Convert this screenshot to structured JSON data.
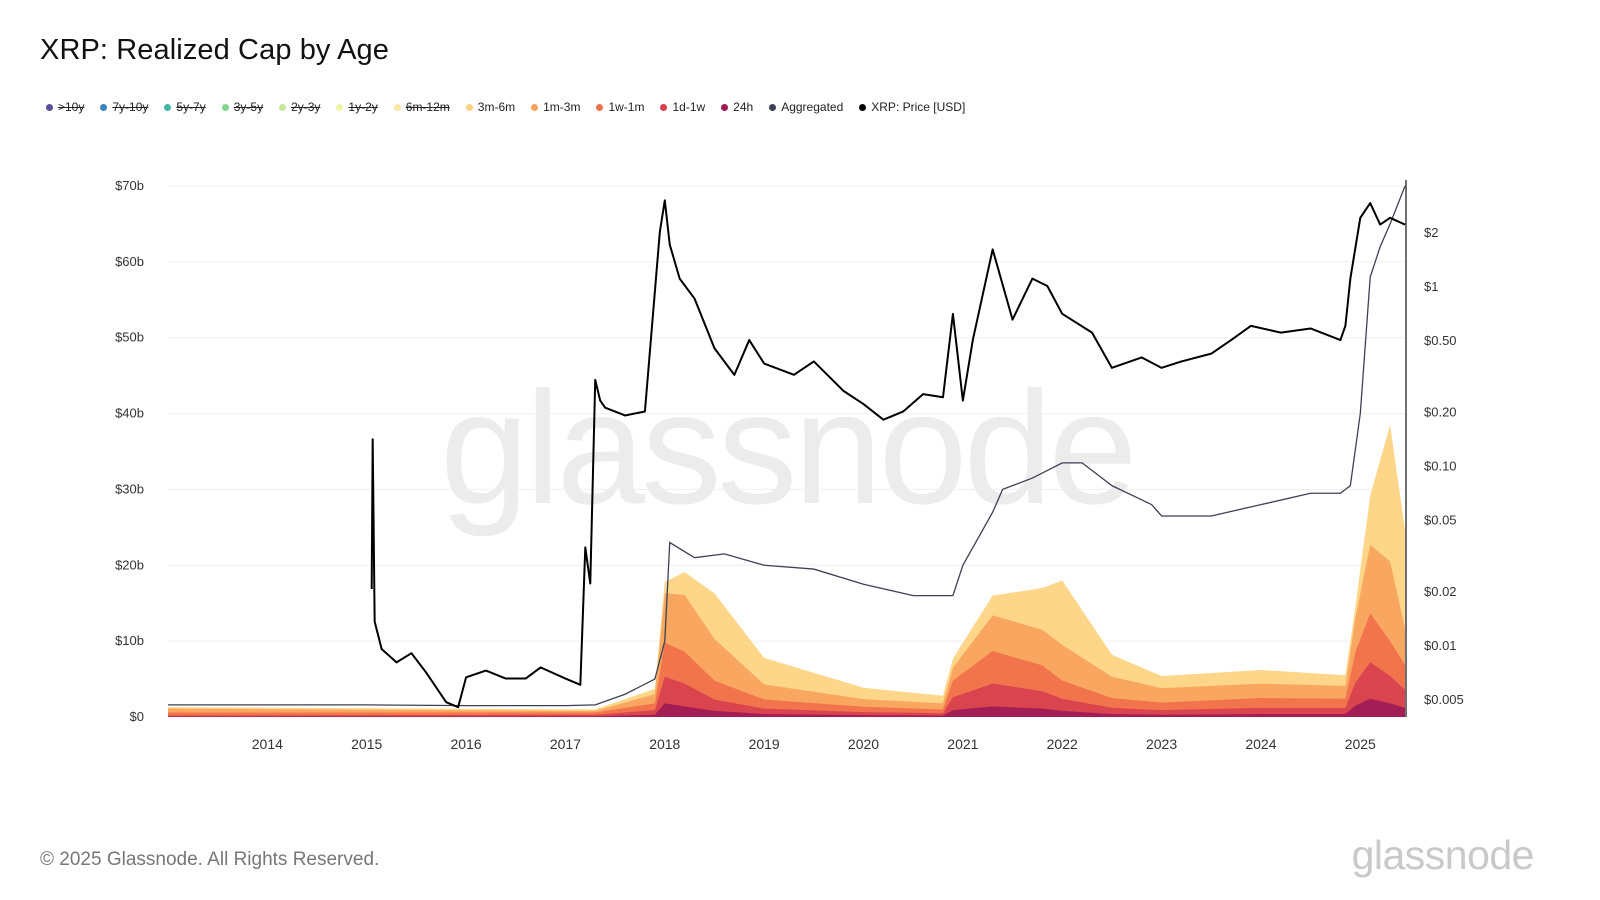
{
  "title": "XRP: Realized Cap by Age",
  "footer": "© 2025 Glassnode. All Rights Reserved.",
  "brand": "glassnode",
  "watermark": "glassnode",
  "legend": [
    {
      "label": ">10y",
      "color": "#5b4f9c",
      "active": false
    },
    {
      "label": "7y-10y",
      "color": "#3a83c1",
      "active": false
    },
    {
      "label": "5y-7y",
      "color": "#41b6a6",
      "active": false
    },
    {
      "label": "3y-5y",
      "color": "#86d58e",
      "active": false
    },
    {
      "label": "2y-3y",
      "color": "#c3e89d",
      "active": false
    },
    {
      "label": "1y-2y",
      "color": "#eef7a6",
      "active": false
    },
    {
      "label": "6m-12m",
      "color": "#fde9a4",
      "active": false
    },
    {
      "label": "3m-6m",
      "color": "#fdd27f",
      "active": true
    },
    {
      "label": "1m-3m",
      "color": "#f9a35c",
      "active": true
    },
    {
      "label": "1w-1m",
      "color": "#f0704c",
      "active": true
    },
    {
      "label": "1d-1w",
      "color": "#d8404e",
      "active": true
    },
    {
      "label": "24h",
      "color": "#9e1b55",
      "active": true
    },
    {
      "label": "Aggregated",
      "color": "#3c4254",
      "active": true
    },
    {
      "label": "XRP: Price [USD]",
      "color": "#000000",
      "active": true
    }
  ],
  "chart_data": {
    "type": "area",
    "x_axis": {
      "type": "time",
      "range": [
        2013.0,
        2025.45
      ],
      "ticks": [
        "2014",
        "2015",
        "2016",
        "2017",
        "2018",
        "2019",
        "2020",
        "2021",
        "2022",
        "2023",
        "2024",
        "2025"
      ]
    },
    "y_axis_left": {
      "range": [
        0,
        70
      ],
      "unit": "billion USD",
      "ticks": [
        "$0",
        "$10b",
        "$20b",
        "$30b",
        "$40b",
        "$50b",
        "$60b",
        "$70b"
      ]
    },
    "y_axis_right": {
      "scale": "log",
      "unit": "USD",
      "ticks": [
        {
          "label": "$0.005",
          "value": 0.005
        },
        {
          "label": "$0.01",
          "value": 0.01
        },
        {
          "label": "$0.02",
          "value": 0.02
        },
        {
          "label": "$0.05",
          "value": 0.05
        },
        {
          "label": "$0.10",
          "value": 0.1
        },
        {
          "label": "$0.20",
          "value": 0.2
        },
        {
          "label": "$0.50",
          "value": 0.5
        },
        {
          "label": "$1",
          "value": 1
        },
        {
          "label": "$2",
          "value": 2
        }
      ]
    },
    "grid": true,
    "legend_position": "top-left",
    "stacked_series": [
      {
        "name": "24h",
        "color": "#9e1b55",
        "x": [
          2013.0,
          2017.3,
          2017.9,
          2018.0,
          2018.2,
          2018.5,
          2019.0,
          2020.0,
          2020.8,
          2020.9,
          2021.3,
          2021.8,
          2022.0,
          2022.5,
          2023.0,
          2024.0,
          2024.85,
          2024.95,
          2025.1,
          2025.3,
          2025.45
        ],
        "values": [
          0.05,
          0.1,
          0.3,
          1.8,
          1.4,
          0.8,
          0.4,
          0.25,
          0.2,
          0.9,
          1.4,
          1.1,
          0.8,
          0.4,
          0.3,
          0.4,
          0.4,
          1.5,
          2.4,
          1.8,
          1.2
        ]
      },
      {
        "name": "1d-1w",
        "color": "#d8404e",
        "x": [
          2013.0,
          2017.3,
          2017.9,
          2018.0,
          2018.2,
          2018.5,
          2019.0,
          2020.0,
          2020.8,
          2020.9,
          2021.3,
          2021.8,
          2022.0,
          2022.5,
          2023.0,
          2024.0,
          2024.85,
          2024.95,
          2025.1,
          2025.3,
          2025.45
        ],
        "values": [
          0.15,
          0.2,
          0.6,
          3.5,
          3.0,
          1.5,
          0.7,
          0.4,
          0.3,
          1.7,
          3.0,
          2.3,
          1.6,
          0.8,
          0.6,
          0.8,
          0.8,
          3.0,
          4.8,
          3.6,
          2.4
        ]
      },
      {
        "name": "1w-1m",
        "color": "#f0704c",
        "x": [
          2013.0,
          2017.3,
          2017.9,
          2018.0,
          2018.2,
          2018.5,
          2019.0,
          2020.0,
          2020.8,
          2020.9,
          2021.3,
          2021.8,
          2022.0,
          2022.5,
          2023.0,
          2024.0,
          2024.85,
          2024.95,
          2025.1,
          2025.3,
          2025.45
        ],
        "values": [
          0.4,
          0.3,
          0.9,
          4.5,
          4.2,
          2.5,
          1.2,
          0.7,
          0.5,
          2.2,
          4.3,
          3.4,
          2.4,
          1.3,
          1.0,
          1.3,
          1.2,
          4.0,
          6.5,
          4.6,
          3.3
        ]
      },
      {
        "name": "1m-3m",
        "color": "#f9a35c",
        "x": [
          2013.0,
          2017.3,
          2017.9,
          2018.0,
          2018.2,
          2018.5,
          2019.0,
          2020.0,
          2020.8,
          2020.9,
          2021.3,
          2021.8,
          2022.0,
          2022.5,
          2023.0,
          2024.0,
          2024.85,
          2024.95,
          2025.1,
          2025.3,
          2025.45
        ],
        "values": [
          0.5,
          0.2,
          1.2,
          6.5,
          7.5,
          5.5,
          2.0,
          1.0,
          0.8,
          1.7,
          4.7,
          4.7,
          4.7,
          2.8,
          1.9,
          1.9,
          1.7,
          4.5,
          9.0,
          10.5,
          4.8
        ]
      },
      {
        "name": "3m-6m",
        "color": "#fdd27f",
        "x": [
          2013.0,
          2017.3,
          2017.9,
          2018.0,
          2018.2,
          2018.5,
          2019.0,
          2020.0,
          2020.8,
          2020.9,
          2021.3,
          2021.8,
          2022.0,
          2022.5,
          2023.0,
          2024.0,
          2024.85,
          2024.95,
          2025.1,
          2025.3,
          2025.45
        ],
        "values": [
          0.2,
          0.2,
          0.7,
          1.5,
          3.0,
          6.0,
          3.5,
          1.5,
          1.0,
          1.2,
          2.6,
          5.5,
          8.5,
          2.9,
          1.6,
          1.8,
          1.4,
          1.5,
          6.5,
          18.0,
          13.0
        ]
      }
    ],
    "aggregated": {
      "name": "Aggregated",
      "x": [
        2013.0,
        2014.0,
        2015.0,
        2016.0,
        2017.0,
        2017.3,
        2017.6,
        2017.9,
        2018.0,
        2018.05,
        2018.3,
        2018.6,
        2019.0,
        2019.5,
        2020.0,
        2020.5,
        2020.9,
        2021.0,
        2021.3,
        2021.4,
        2021.7,
        2022.0,
        2022.2,
        2022.5,
        2022.9,
        2023.0,
        2023.5,
        2024.0,
        2024.5,
        2024.8,
        2024.9,
        2025.0,
        2025.1,
        2025.2,
        2025.3,
        2025.45
      ],
      "values": [
        1.6,
        1.6,
        1.6,
        1.5,
        1.5,
        1.6,
        3.0,
        5.0,
        10.0,
        23.0,
        21.0,
        21.5,
        20.0,
        19.5,
        17.5,
        16.0,
        16.0,
        20.0,
        27.0,
        30.0,
        31.5,
        33.5,
        33.5,
        30.5,
        28.0,
        26.5,
        26.5,
        28.0,
        29.5,
        29.5,
        30.5,
        40.0,
        58.0,
        62.0,
        65.0,
        70.0
      ]
    },
    "price": {
      "name": "XRP: Price [USD]",
      "x": [
        2015.05,
        2015.06,
        2015.08,
        2015.15,
        2015.3,
        2015.45,
        2015.6,
        2015.8,
        2015.92,
        2016.0,
        2016.2,
        2016.4,
        2016.6,
        2016.75,
        2017.0,
        2017.15,
        2017.2,
        2017.25,
        2017.3,
        2017.35,
        2017.4,
        2017.6,
        2017.8,
        2017.95,
        2018.0,
        2018.05,
        2018.15,
        2018.3,
        2018.5,
        2018.7,
        2018.85,
        2019.0,
        2019.3,
        2019.5,
        2019.8,
        2020.0,
        2020.2,
        2020.4,
        2020.6,
        2020.8,
        2020.9,
        2021.0,
        2021.1,
        2021.3,
        2021.5,
        2021.7,
        2021.85,
        2022.0,
        2022.3,
        2022.5,
        2022.8,
        2023.0,
        2023.2,
        2023.5,
        2023.7,
        2023.9,
        2024.2,
        2024.5,
        2024.8,
        2024.85,
        2024.9,
        2025.0,
        2025.1,
        2025.2,
        2025.3,
        2025.45
      ],
      "values": [
        0.0205,
        0.14,
        0.0135,
        0.0095,
        0.008,
        0.009,
        0.007,
        0.0048,
        0.0045,
        0.0066,
        0.0072,
        0.0065,
        0.0065,
        0.0075,
        0.0065,
        0.006,
        0.035,
        0.022,
        0.3,
        0.23,
        0.21,
        0.19,
        0.2,
        2.0,
        3.0,
        1.7,
        1.1,
        0.85,
        0.45,
        0.32,
        0.5,
        0.37,
        0.32,
        0.38,
        0.26,
        0.22,
        0.18,
        0.2,
        0.25,
        0.24,
        0.7,
        0.23,
        0.5,
        1.6,
        0.65,
        1.1,
        1.0,
        0.7,
        0.55,
        0.35,
        0.4,
        0.35,
        0.38,
        0.42,
        0.5,
        0.6,
        0.55,
        0.58,
        0.5,
        0.6,
        1.1,
        2.4,
        2.9,
        2.2,
        2.4,
        2.2
      ]
    }
  }
}
